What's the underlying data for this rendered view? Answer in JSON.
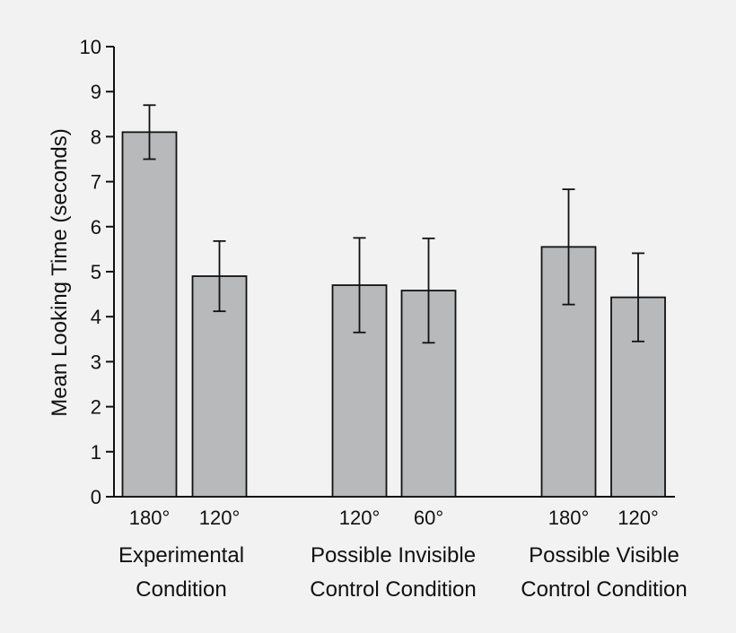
{
  "chart_data": {
    "type": "bar",
    "ylabel": "Mean Looking Time (seconds)",
    "ylim": [
      0,
      10
    ],
    "yticks": [
      0,
      1,
      2,
      3,
      4,
      5,
      6,
      7,
      8,
      9,
      10
    ],
    "grid": false,
    "groups": [
      {
        "label_lines": [
          "Experimental",
          "Condition"
        ],
        "bars": [
          {
            "label": "180°",
            "value": 8.1,
            "error": 0.6
          },
          {
            "label": "120°",
            "value": 4.9,
            "error": 0.78
          }
        ]
      },
      {
        "label_lines": [
          "Possible Invisible",
          "Control Condition"
        ],
        "bars": [
          {
            "label": "120°",
            "value": 4.7,
            "error": 1.05
          },
          {
            "label": "60°",
            "value": 4.58,
            "error": 1.16
          }
        ]
      },
      {
        "label_lines": [
          "Possible Visible",
          "Control Condition"
        ],
        "bars": [
          {
            "label": "180°",
            "value": 5.55,
            "error": 1.28
          },
          {
            "label": "120°",
            "value": 4.43,
            "error": 0.98
          }
        ]
      }
    ]
  }
}
